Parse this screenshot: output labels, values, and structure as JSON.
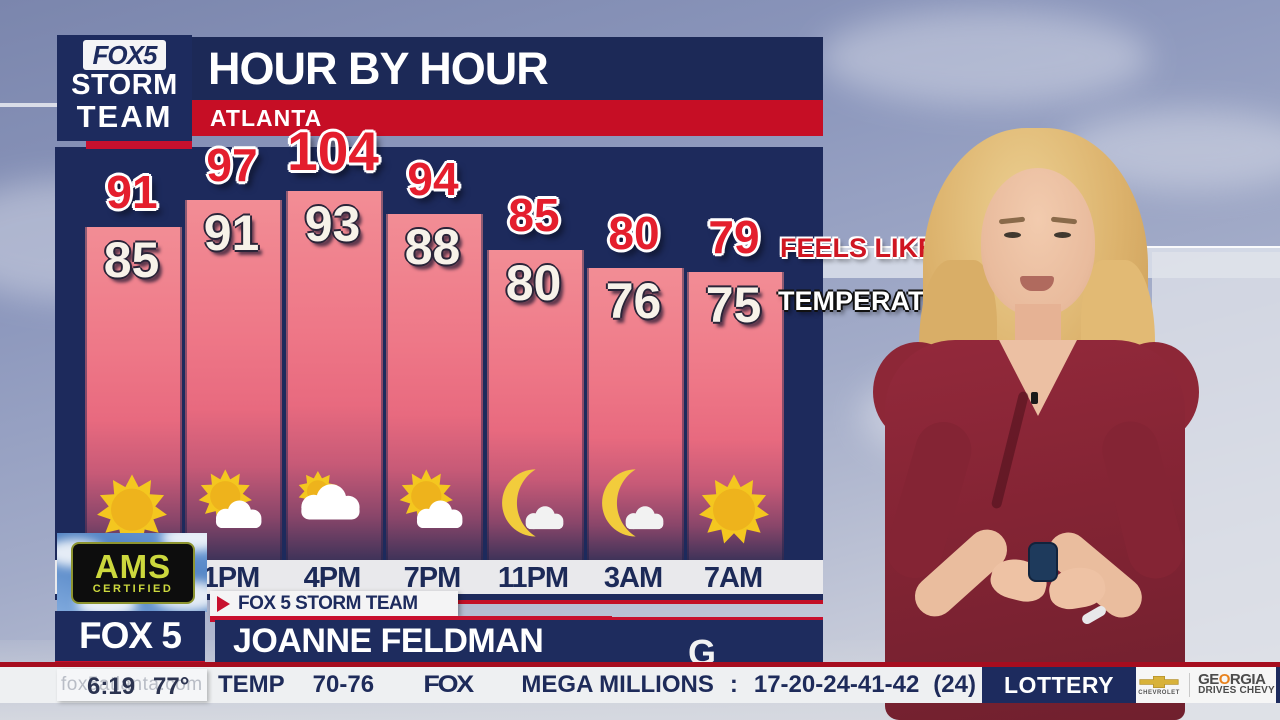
{
  "header": {
    "logo_line1": "FOX5",
    "logo_line2": "STORM",
    "logo_line3": "TEAM",
    "title": "HOUR BY HOUR",
    "location": "ATLANTA"
  },
  "chart_data": {
    "type": "bar",
    "title": "HOUR BY HOUR",
    "subtitle": "ATLANTA",
    "categories": [
      "",
      "1PM",
      "4PM",
      "7PM",
      "11PM",
      "3AM",
      "7AM"
    ],
    "series": [
      {
        "name": "FEELS LIKE",
        "values": [
          91,
          97,
          104,
          94,
          85,
          80,
          79
        ],
        "color": "#e41e2d"
      },
      {
        "name": "TEMPERATURE",
        "values": [
          85,
          91,
          93,
          88,
          80,
          76,
          75
        ],
        "color": "#f7f2e9"
      }
    ],
    "conditions": [
      "sunny",
      "mostly-sunny",
      "partly-cloudy",
      "mostly-sunny",
      "moon-cloud",
      "moon-cloud",
      "sunny"
    ],
    "ylim": [
      40,
      110
    ],
    "legend_position": "right",
    "bar_gradient": [
      "#f28d95",
      "#3f3359"
    ]
  },
  "legend": {
    "feels_like": "FEELS LIKE",
    "temperature": "TEMPERAT"
  },
  "ams_badge": {
    "line1": "AMS",
    "line2": "CERTIFIED"
  },
  "lower_third": {
    "tag": "FOX 5 STORM TEAM",
    "station": "FOX 5",
    "presenter_name": "JOANNE FELDMAN",
    "partial_text": "G"
  },
  "ticker": {
    "watermark": "fox5atlanta.com",
    "clock_time": "6:19",
    "current_temp": "77°",
    "temp_label": "TEMP",
    "temp_range": "70-76",
    "fox_logo": "FOX",
    "lottery_game": "MEGA MILLIONS",
    "separator": ":",
    "winning_numbers": "17-20-24-41-42",
    "bonus_number": "(24)",
    "fox_logo2": "FOX",
    "lottery_label": "LOTTERY",
    "sponsor_brand": "CHEVROLET",
    "sponsor_line1_a": "GE",
    "sponsor_line1_o": "O",
    "sponsor_line1_b": "RGIA",
    "sponsor_line2": "DRIVES CHEVY"
  },
  "colors": {
    "navy": "#1d2b5e",
    "red": "#c8102e",
    "feels_like_red": "#e41e2d",
    "bar_top": "#f28d95",
    "bar_bottom": "#3f3359",
    "sun_yellow": "#f4c71f",
    "ticker_bg": "#eef0f2"
  }
}
